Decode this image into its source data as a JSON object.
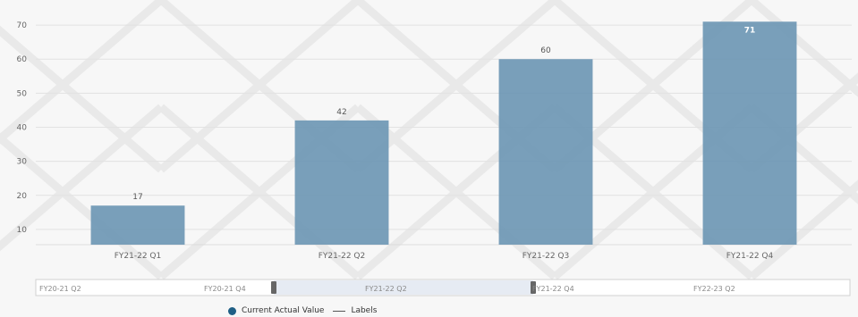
{
  "chart_data": {
    "type": "bar",
    "categories": [
      "FY21-22 Q1",
      "FY21-22 Q2",
      "FY21-22 Q3",
      "FY21-22 Q4"
    ],
    "series": [
      {
        "name": "Current Actual Value",
        "values": [
          17,
          42,
          60,
          71
        ]
      }
    ],
    "data_labels": [
      "17",
      "42",
      "60",
      "71"
    ],
    "y_ticks": [
      10,
      20,
      30,
      40,
      50,
      60,
      70
    ],
    "ylim": [
      5,
      75
    ],
    "grid": true,
    "bar_color": "#6e97b4",
    "legend": {
      "placement": "bottom",
      "items": [
        "Current Actual Value",
        "Labels"
      ]
    },
    "navigator": {
      "labels": [
        "FY20-21 Q2",
        "FY20-21 Q4",
        "FY21-22 Q2",
        "FY21-22 Q4",
        "FY22-23 Q2"
      ]
    }
  },
  "colors": {
    "bar": "#6e97b4",
    "legend_dot": "#1f5f85",
    "grid": "#e2e2e2",
    "navigator_selection": "#e6ebf3"
  }
}
